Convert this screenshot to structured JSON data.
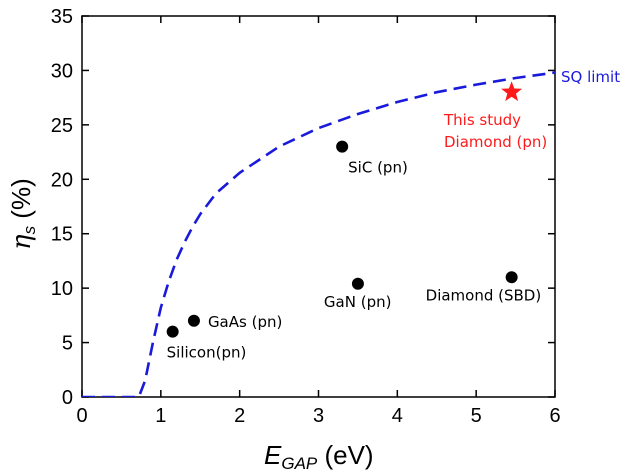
{
  "chart_data": {
    "type": "scatter",
    "xlabel": {
      "main": "E",
      "sub": "GAP",
      "rest": " (eV)"
    },
    "ylabel": {
      "main": "η",
      "sub": "s",
      "rest": " (%)"
    },
    "xlim": [
      0,
      6
    ],
    "ylim": [
      0,
      35
    ],
    "xticks": [
      "0",
      "1",
      "2",
      "3",
      "4",
      "5",
      "6"
    ],
    "yticks": [
      "0",
      "5",
      "10",
      "15",
      "20",
      "25",
      "30",
      "35"
    ],
    "grid": false,
    "sq_limit": {
      "label": "SQ limit",
      "color": "#1a1adb",
      "style": "dashed",
      "x": [
        0,
        0.5,
        0.72,
        0.8,
        0.9,
        1.0,
        1.1,
        1.2,
        1.3,
        1.4,
        1.5,
        1.7,
        2.0,
        2.5,
        3.0,
        3.5,
        4.0,
        4.5,
        5.0,
        5.5,
        6.0
      ],
      "y": [
        0,
        0,
        0,
        1.5,
        5.0,
        8.2,
        10.6,
        12.6,
        14.2,
        15.6,
        16.8,
        18.7,
        20.6,
        23.0,
        24.7,
        26.0,
        27.1,
        28.0,
        28.7,
        29.3,
        29.8
      ]
    },
    "points": [
      {
        "label": "Silicon(pn)",
        "x": 1.15,
        "y": 6.0
      },
      {
        "label": "GaAs (pn)",
        "x": 1.42,
        "y": 7.0
      },
      {
        "label": "SiC (pn)",
        "x": 3.3,
        "y": 23.0
      },
      {
        "label": "GaN (pn)",
        "x": 3.5,
        "y": 10.4
      },
      {
        "label": "Diamond (SBD)",
        "x": 5.45,
        "y": 11.0
      }
    ],
    "highlight": {
      "label_line1": "This study",
      "label_line2": "Diamond (pn)",
      "x": 5.45,
      "y": 28.0,
      "color": "#ff1a1a"
    }
  }
}
